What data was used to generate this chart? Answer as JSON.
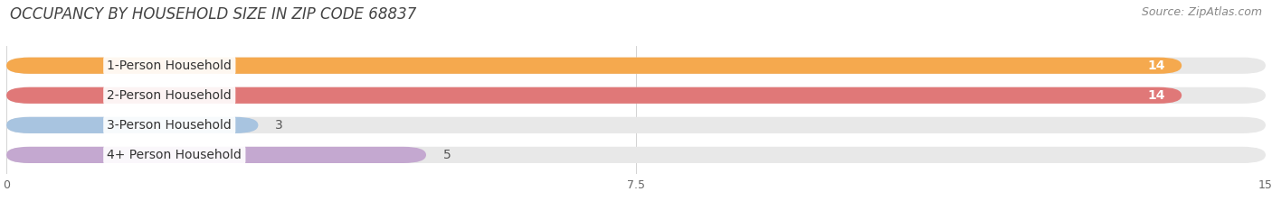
{
  "title": "OCCUPANCY BY HOUSEHOLD SIZE IN ZIP CODE 68837",
  "source": "Source: ZipAtlas.com",
  "categories": [
    "1-Person Household",
    "2-Person Household",
    "3-Person Household",
    "4+ Person Household"
  ],
  "values": [
    14,
    14,
    3,
    5
  ],
  "bar_colors": [
    "#F5A94E",
    "#E07878",
    "#A8C4E0",
    "#C4A8D0"
  ],
  "bar_bg_color": "#E8E8E8",
  "xlim": [
    0,
    15
  ],
  "xticks": [
    0,
    7.5,
    15
  ],
  "title_fontsize": 12,
  "source_fontsize": 9,
  "label_fontsize": 10,
  "value_fontsize": 10,
  "background_color": "#FFFFFF"
}
